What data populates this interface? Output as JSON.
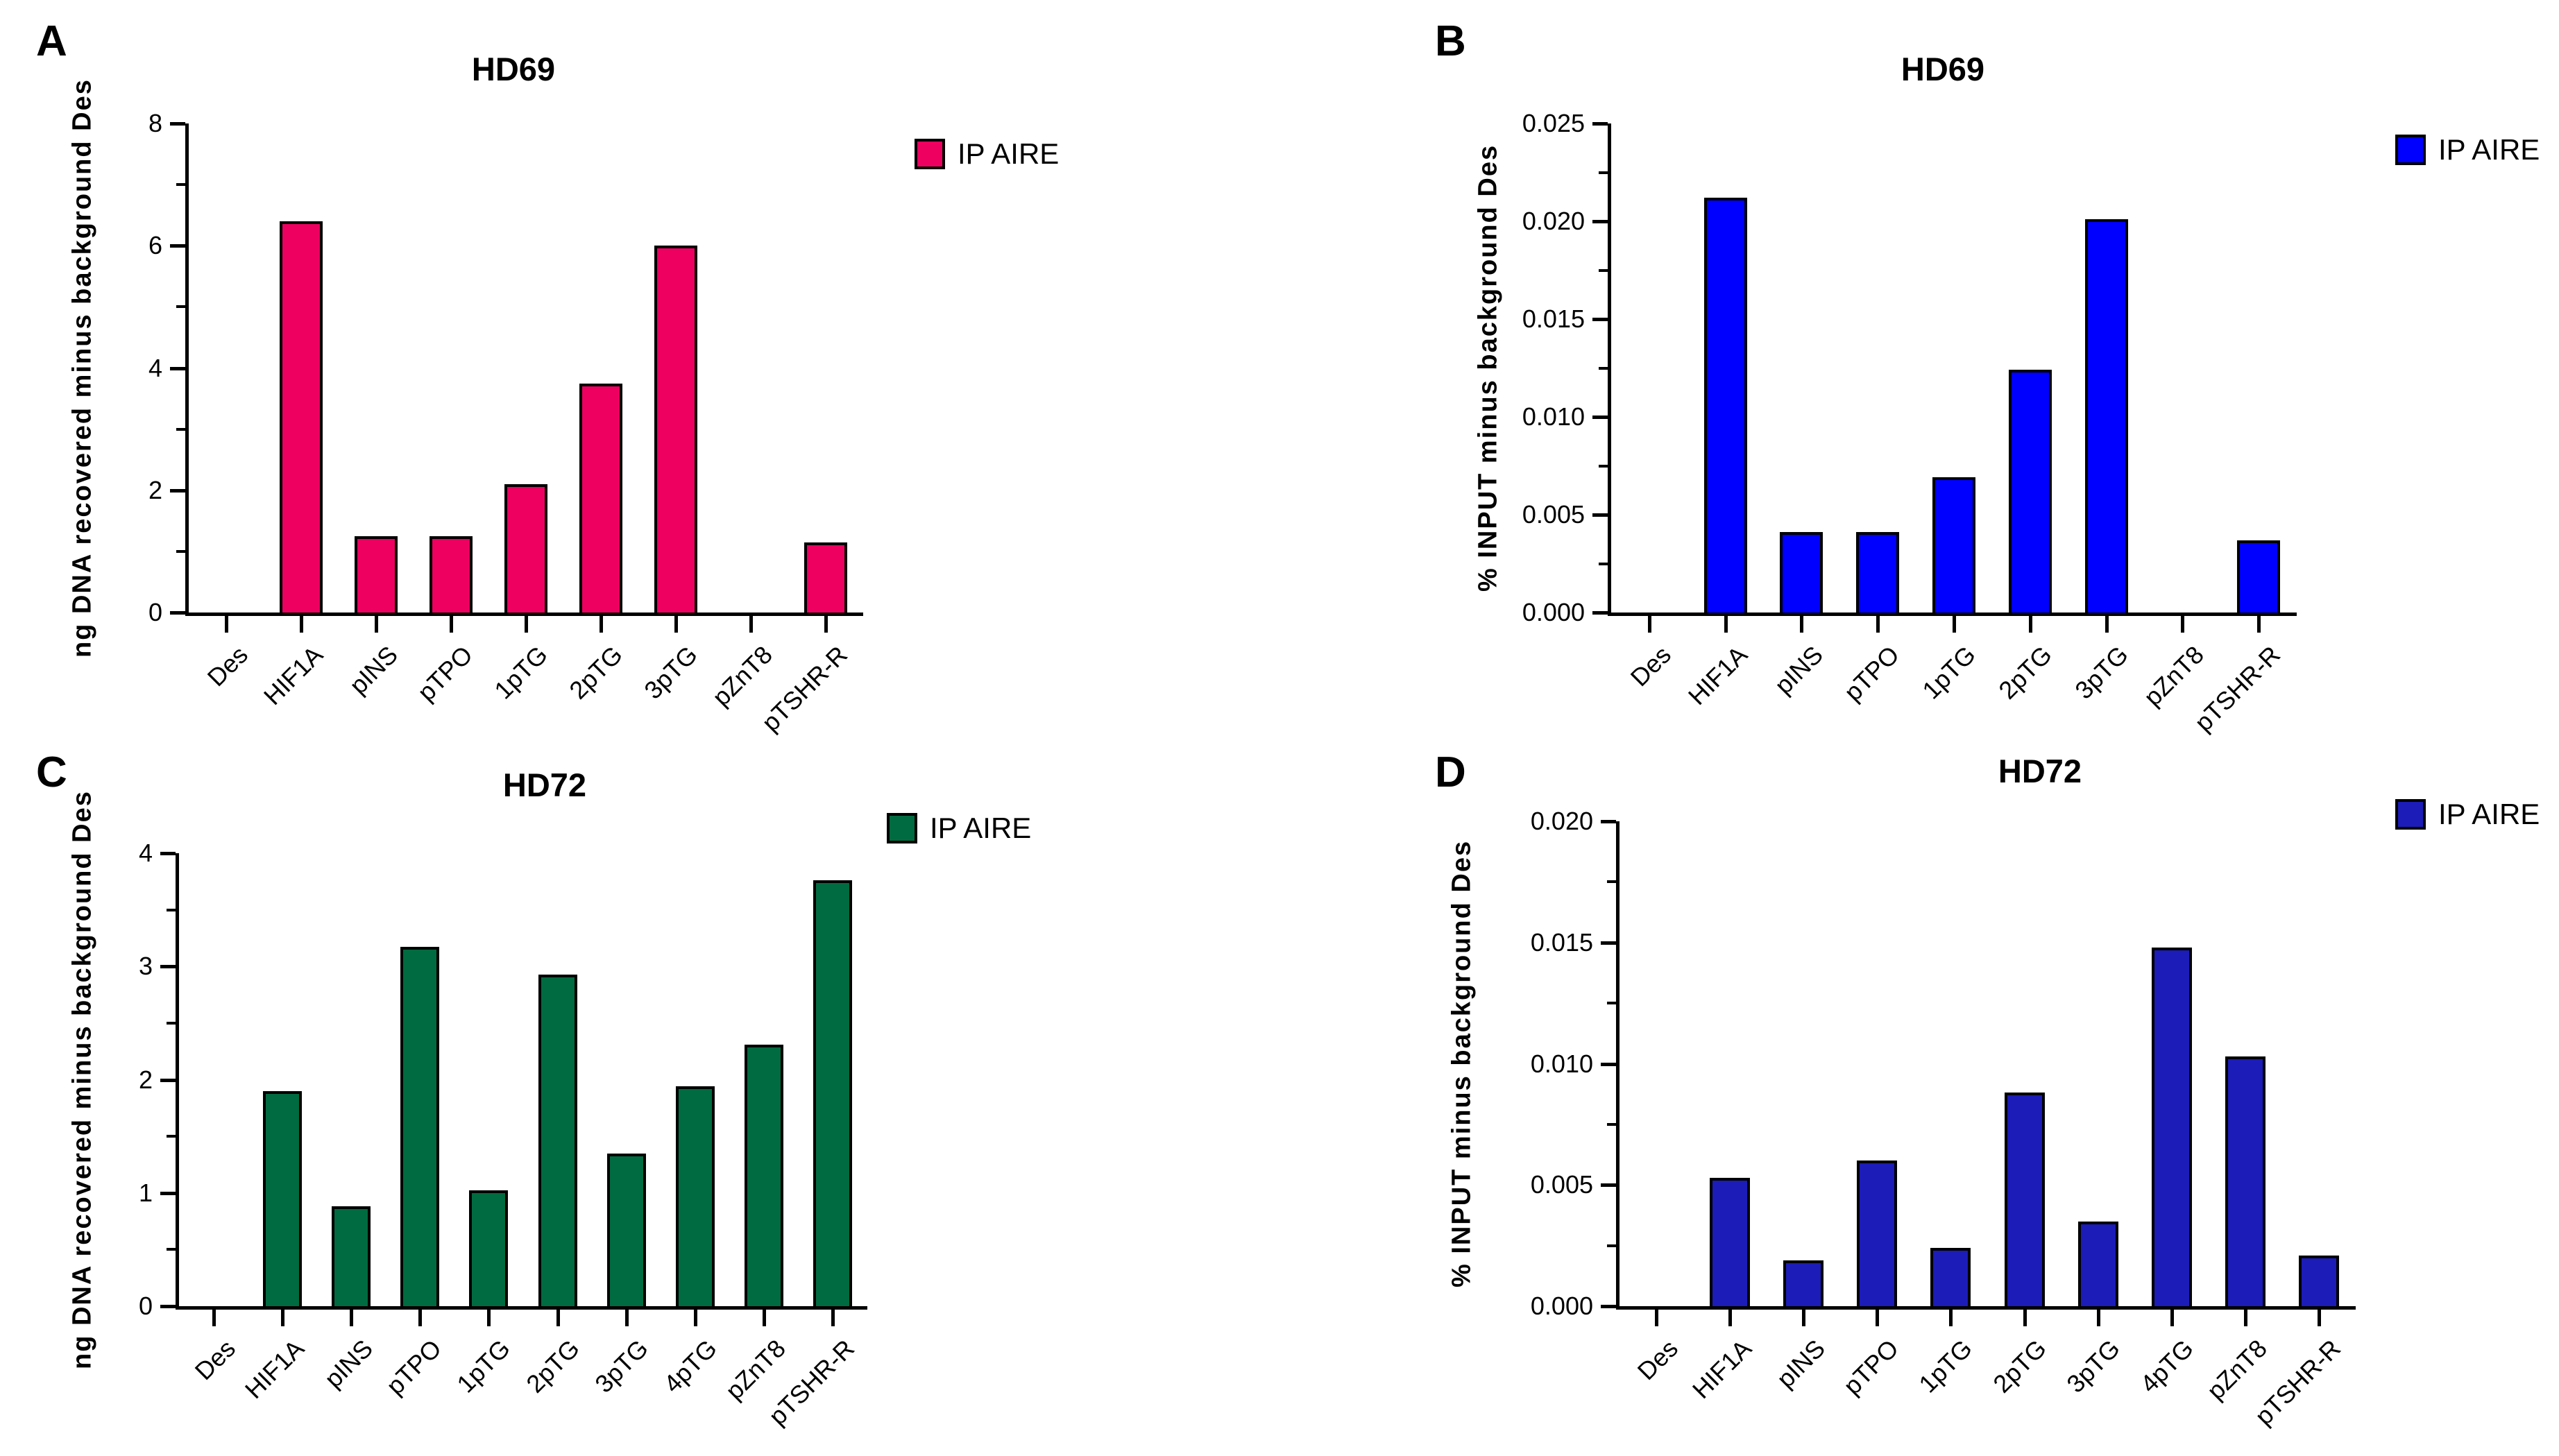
{
  "figure": {
    "background": "#ffffff"
  },
  "chart_data": [
    {
      "type": "bar",
      "panel_letter": "A",
      "title": "HD69",
      "legend": "IP AIRE",
      "legend_position": "right-top",
      "bar_color": "#EE0060",
      "ylabel": "ng DNA recovered minus background Des",
      "xlabel": "",
      "ylim": [
        0,
        8
      ],
      "grid": false,
      "categories": [
        "Des",
        "HIF1A",
        "pINS",
        "pTPO",
        "1pTG",
        "2pTG",
        "3pTG",
        "pZnT8",
        "pTSHR-R"
      ],
      "values": [
        0,
        6.4,
        1.25,
        1.25,
        2.1,
        3.75,
        6.0,
        0,
        1.15
      ],
      "ytick_values": [
        0,
        2,
        4,
        6,
        8
      ],
      "ytick_labels": [
        "0",
        "2",
        "4",
        "6",
        "8"
      ],
      "minor_tick_values": [
        1,
        3,
        5,
        7
      ]
    },
    {
      "type": "bar",
      "panel_letter": "B",
      "title": "HD69",
      "legend": "IP AIRE",
      "legend_position": "right-top",
      "bar_color": "#0000FF",
      "ylabel": "% INPUT minus background Des",
      "xlabel": "",
      "ylim": [
        0,
        0.025
      ],
      "grid": false,
      "categories": [
        "Des",
        "HIF1A",
        "pINS",
        "pTPO",
        "1pTG",
        "2pTG",
        "3pTG",
        "pZnT8",
        "pTSHR-R"
      ],
      "values": [
        0,
        0.0212,
        0.0041,
        0.0041,
        0.0069,
        0.0124,
        0.0201,
        0,
        0.0037
      ],
      "ytick_values": [
        0,
        0.005,
        0.01,
        0.015,
        0.02,
        0.025
      ],
      "ytick_labels": [
        "0.000",
        "0.005",
        "0.010",
        "0.015",
        "0.020",
        "0.025"
      ],
      "minor_tick_values": [
        0.0025,
        0.0075,
        0.0125,
        0.0175,
        0.0225
      ]
    },
    {
      "type": "bar",
      "panel_letter": "C",
      "title": "HD72",
      "legend": "IP AIRE",
      "legend_position": "right-top",
      "bar_color": "#006B40",
      "ylabel": "ng DNA recovered minus background Des",
      "xlabel": "",
      "ylim": [
        0,
        4
      ],
      "grid": false,
      "categories": [
        "Des",
        "HIF1A",
        "pINS",
        "pTPO",
        "1pTG",
        "2pTG",
        "3pTG",
        "4pTG",
        "pZnT8",
        "pTSHR-R"
      ],
      "values": [
        0,
        1.9,
        0.88,
        3.17,
        1.02,
        2.93,
        1.35,
        1.94,
        2.31,
        3.76
      ],
      "ytick_values": [
        0,
        1,
        2,
        3,
        4
      ],
      "ytick_labels": [
        "0",
        "1",
        "2",
        "3",
        "4"
      ],
      "minor_tick_values": [
        0.5,
        1.5,
        2.5,
        3.5
      ]
    },
    {
      "type": "bar",
      "panel_letter": "D",
      "title": "HD72",
      "legend": "IP AIRE",
      "legend_position": "right-top",
      "bar_color": "#1C1CB8",
      "ylabel": "% INPUT minus background Des",
      "xlabel": "",
      "ylim": [
        0,
        0.02
      ],
      "grid": false,
      "categories": [
        "Des",
        "HIF1A",
        "pINS",
        "pTPO",
        "1pTG",
        "2pTG",
        "3pTG",
        "4pTG",
        "pZnT8",
        "pTSHR-R"
      ],
      "values": [
        0,
        0.0053,
        0.0019,
        0.006,
        0.0024,
        0.0088,
        0.0035,
        0.0148,
        0.0103,
        0.0021
      ],
      "ytick_values": [
        0,
        0.005,
        0.01,
        0.015,
        0.02
      ],
      "ytick_labels": [
        "0.000",
        "0.005",
        "0.010",
        "0.015",
        "0.020"
      ],
      "minor_tick_values": [
        0.0025,
        0.0075,
        0.0125,
        0.0175
      ]
    }
  ]
}
